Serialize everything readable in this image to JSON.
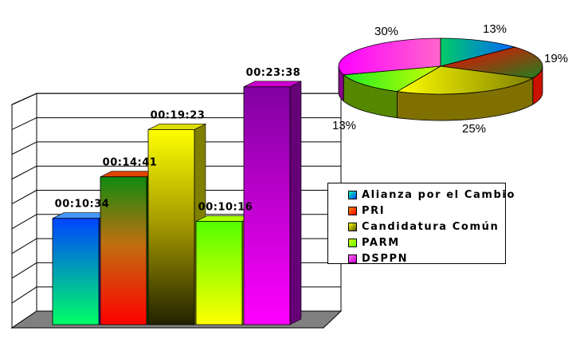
{
  "chart_data": [
    {
      "type": "bar",
      "categories": [
        "Alianza por el Cambio",
        "PRI",
        "Candidatura Común",
        "PARM",
        "DSPPN"
      ],
      "values": [
        634,
        881,
        1163,
        616,
        1418
      ],
      "data_labels": [
        "00:10:34",
        "00:14:41",
        "00:19:23",
        "00:10:16",
        "00:23:38"
      ],
      "ylim": [
        0,
        1500
      ],
      "grid": true,
      "three_d": true
    },
    {
      "type": "pie",
      "labels": [
        "Alianza por el Cambio",
        "PRI",
        "Candidatura Común",
        "PARM",
        "DSPPN"
      ],
      "values": [
        13,
        19,
        25,
        13,
        30
      ],
      "value_labels": [
        "13%",
        "19%",
        "25%",
        "13%",
        "30%"
      ],
      "three_d": true
    }
  ],
  "legend": {
    "placement": "right",
    "items": [
      {
        "label": "Alianza por el Cambio",
        "color": "#1E90FF"
      },
      {
        "label": "PRI",
        "color": "#FF2D00"
      },
      {
        "label": "Candidatura Común",
        "color": "#9A8A00"
      },
      {
        "label": "PARM",
        "color": "#CCFF00"
      },
      {
        "label": "DSPPN",
        "color": "#FF00FF"
      }
    ]
  },
  "colors": {
    "floor": "#808080",
    "grid": "#000000"
  }
}
